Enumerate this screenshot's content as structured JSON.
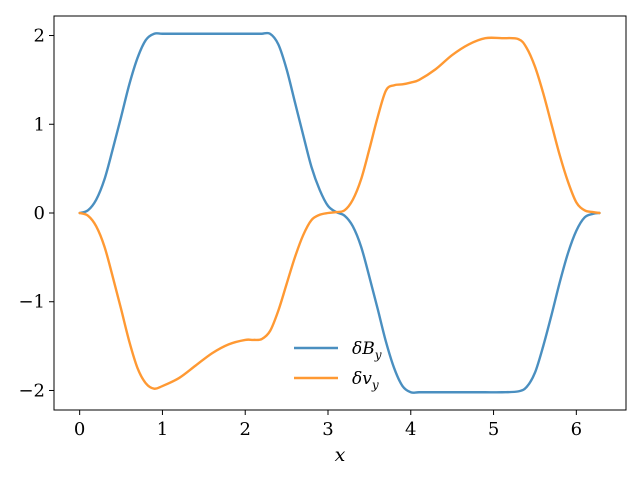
{
  "chart_data": {
    "type": "line",
    "xlabel": "x",
    "ylabel": "",
    "xlim": [
      -0.31,
      6.6
    ],
    "ylim": [
      -2.22,
      2.22
    ],
    "xticks": [
      0,
      1,
      2,
      3,
      4,
      5,
      6
    ],
    "yticks": [
      -2,
      -1,
      0,
      1,
      2
    ],
    "xtick_labels": [
      "0",
      "1",
      "2",
      "3",
      "4",
      "5",
      "6"
    ],
    "ytick_labels": [
      "−2",
      "−1",
      "0",
      "1",
      "2"
    ],
    "grid": false,
    "legend_position": "lower-center",
    "x": [
      0,
      0.1,
      0.2,
      0.3,
      0.4,
      0.5,
      0.6,
      0.7,
      0.8,
      0.9,
      1.0,
      1.2,
      1.4,
      1.6,
      1.8,
      2.0,
      2.1,
      2.2,
      2.3,
      2.4,
      2.5,
      2.6,
      2.7,
      2.8,
      2.9,
      3.0,
      3.1,
      3.2,
      3.3,
      3.4,
      3.5,
      3.6,
      3.7,
      3.8,
      3.9,
      4.0,
      4.1,
      4.3,
      4.5,
      4.7,
      4.9,
      5.1,
      5.3,
      5.4,
      5.5,
      5.6,
      5.7,
      5.8,
      5.9,
      6.0,
      6.1,
      6.2,
      6.28
    ],
    "series": [
      {
        "name": "δB_y",
        "legend_main": "δB",
        "legend_sub": "y",
        "color": "#4a8fc0",
        "values": [
          0,
          0.03,
          0.15,
          0.38,
          0.72,
          1.08,
          1.45,
          1.75,
          1.95,
          2.02,
          2.02,
          2.02,
          2.02,
          2.02,
          2.02,
          2.02,
          2.02,
          2.02,
          2.02,
          1.9,
          1.62,
          1.25,
          0.88,
          0.52,
          0.26,
          0.08,
          0.01,
          -0.03,
          -0.15,
          -0.38,
          -0.72,
          -1.08,
          -1.45,
          -1.75,
          -1.95,
          -2.02,
          -2.02,
          -2.02,
          -2.02,
          -2.02,
          -2.02,
          -2.02,
          -2.01,
          -1.96,
          -1.8,
          -1.5,
          -1.15,
          -0.78,
          -0.45,
          -0.2,
          -0.05,
          -0.01,
          0
        ]
      },
      {
        "name": "δv_y",
        "legend_main": "δv",
        "legend_sub": "y",
        "color": "#ff9933",
        "values": [
          0,
          -0.03,
          -0.15,
          -0.38,
          -0.72,
          -1.08,
          -1.45,
          -1.75,
          -1.92,
          -1.98,
          -1.95,
          -1.86,
          -1.72,
          -1.58,
          -1.48,
          -1.43,
          -1.43,
          -1.42,
          -1.33,
          -1.1,
          -0.8,
          -0.5,
          -0.25,
          -0.08,
          -0.02,
          0.0,
          0.01,
          0.03,
          0.15,
          0.38,
          0.72,
          1.08,
          1.38,
          1.44,
          1.45,
          1.47,
          1.5,
          1.62,
          1.78,
          1.9,
          1.97,
          1.97,
          1.96,
          1.86,
          1.65,
          1.35,
          1.0,
          0.65,
          0.35,
          0.12,
          0.03,
          0.01,
          0
        ]
      }
    ]
  }
}
